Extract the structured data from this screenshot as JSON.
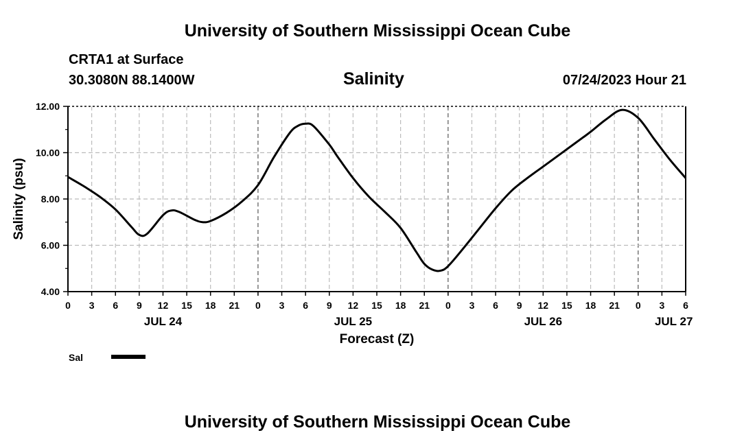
{
  "page": {
    "title_top": "University of Southern Mississippi Ocean Cube",
    "title_bottom": "University of Southern Mississippi Ocean Cube",
    "station": "CRTA1 at Surface",
    "location": "30.3080N  88.1400W",
    "timestamp": "07/24/2023 Hour 21"
  },
  "chart_data": {
    "type": "line",
    "title": "Salinity",
    "xlabel": "Forecast (Z)",
    "ylabel": "Salinity (psu)",
    "x_unit": "hours from JUL 24 00Z",
    "xlim": [
      0,
      78
    ],
    "ylim": [
      4.0,
      12.0
    ],
    "yticks": [
      4.0,
      6.0,
      8.0,
      10.0,
      12.0
    ],
    "ytick_labels": [
      "4.00",
      "6.00",
      "8.00",
      "10.00",
      "12.00"
    ],
    "xticks": [
      0,
      3,
      6,
      9,
      12,
      15,
      18,
      21,
      24,
      27,
      30,
      33,
      36,
      39,
      42,
      45,
      48,
      51,
      54,
      57,
      60,
      63,
      66,
      69,
      72,
      75,
      78
    ],
    "xtick_labels": [
      "0",
      "3",
      "6",
      "9",
      "12",
      "15",
      "18",
      "21",
      "0",
      "3",
      "6",
      "9",
      "12",
      "15",
      "18",
      "21",
      "0",
      "3",
      "6",
      "9",
      "12",
      "15",
      "18",
      "21",
      "0",
      "3",
      "6"
    ],
    "day_labels": [
      {
        "label": "JUL 24",
        "hour": 12
      },
      {
        "label": "JUL 25",
        "hour": 36
      },
      {
        "label": "JUL 26",
        "hour": 60
      },
      {
        "label": "JUL 27",
        "hour": 76.5
      }
    ],
    "grid": true,
    "legend": [
      {
        "name": "Sal",
        "color": "#000000"
      }
    ],
    "series": [
      {
        "name": "Sal",
        "x": [
          0,
          2,
          4,
          6,
          8,
          9,
          10,
          12,
          13,
          14,
          16,
          17,
          18,
          20,
          22,
          24,
          26,
          28,
          29,
          30,
          31,
          33,
          34,
          36,
          38,
          40,
          42,
          44,
          45,
          46,
          47,
          48,
          50,
          52,
          54,
          56,
          58,
          60,
          62,
          64,
          65,
          66,
          68,
          70,
          72,
          74,
          76,
          78
        ],
        "values": [
          8.95,
          8.55,
          8.1,
          7.55,
          6.8,
          6.45,
          6.5,
          7.3,
          7.5,
          7.45,
          7.1,
          7.0,
          7.05,
          7.4,
          7.9,
          8.6,
          9.8,
          10.85,
          11.15,
          11.25,
          11.15,
          10.35,
          9.85,
          8.9,
          8.1,
          7.45,
          6.75,
          5.7,
          5.2,
          4.95,
          4.9,
          5.1,
          5.9,
          6.75,
          7.6,
          8.35,
          8.9,
          9.4,
          9.9,
          10.4,
          10.65,
          10.9,
          11.45,
          11.85,
          11.5,
          10.6,
          9.7,
          8.9
        ]
      }
    ]
  }
}
